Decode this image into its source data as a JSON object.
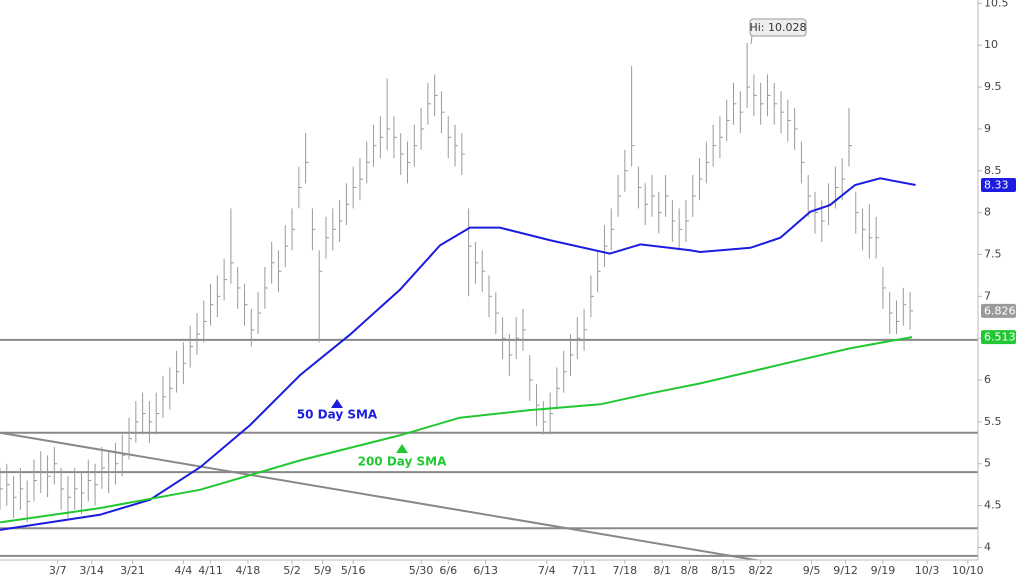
{
  "chart_data": {
    "type": "ohlc",
    "bars": {
      "color": "#9a9a9a",
      "high": [
        4.95,
        5.0,
        4.85,
        4.95,
        4.8,
        5.05,
        5.15,
        5.1,
        5.2,
        4.95,
        4.85,
        4.95,
        4.9,
        5.05,
        5.0,
        5.2,
        5.15,
        5.25,
        5.35,
        5.55,
        5.75,
        5.85,
        5.75,
        5.85,
        6.05,
        6.15,
        6.35,
        6.45,
        6.65,
        6.8,
        6.95,
        7.15,
        7.25,
        7.45,
        8.05,
        7.35,
        7.15,
        6.85,
        7.05,
        7.35,
        7.65,
        7.55,
        7.85,
        8.05,
        8.55,
        8.95,
        8.05,
        7.55,
        7.95,
        8.05,
        8.15,
        8.35,
        8.55,
        8.65,
        8.85,
        9.05,
        9.15,
        9.6,
        9.15,
        8.95,
        8.85,
        9.05,
        9.25,
        9.55,
        9.65,
        9.45,
        9.15,
        9.05,
        8.95,
        8.05,
        7.65,
        7.55,
        7.25,
        7.05,
        6.75,
        6.55,
        6.75,
        6.85,
        6.3,
        5.95,
        5.75,
        5.85,
        6.15,
        6.35,
        6.55,
        6.75,
        6.85,
        7.25,
        7.55,
        7.85,
        8.05,
        8.45,
        8.75,
        9.75,
        8.55,
        8.35,
        8.45,
        8.25,
        8.45,
        8.15,
        8.05,
        8.15,
        8.45,
        8.65,
        8.85,
        9.05,
        9.15,
        9.35,
        9.55,
        9.45,
        10.028,
        9.65,
        9.55,
        9.65,
        9.55,
        9.45,
        9.35,
        9.25,
        8.85,
        8.45,
        8.25,
        8.15,
        8.35,
        8.55,
        8.65,
        9.25,
        8.25,
        8.05,
        8.1,
        7.95,
        7.35,
        7.05,
        6.95,
        7.1,
        7.05
      ],
      "low": [
        4.45,
        4.5,
        4.35,
        4.45,
        4.3,
        4.55,
        4.65,
        4.6,
        4.75,
        4.45,
        4.35,
        4.45,
        4.4,
        4.55,
        4.5,
        4.7,
        4.65,
        4.75,
        4.85,
        5.05,
        5.25,
        5.35,
        5.25,
        5.35,
        5.55,
        5.65,
        5.85,
        5.95,
        6.15,
        6.3,
        6.45,
        6.65,
        6.75,
        6.95,
        7.15,
        6.85,
        6.65,
        6.4,
        6.55,
        6.85,
        7.15,
        7.05,
        7.35,
        7.55,
        8.05,
        8.35,
        7.55,
        6.45,
        7.45,
        7.55,
        7.65,
        7.85,
        8.05,
        8.15,
        8.35,
        8.55,
        8.65,
        8.75,
        8.65,
        8.45,
        8.35,
        8.55,
        8.75,
        9.05,
        9.15,
        8.95,
        8.65,
        8.55,
        8.45,
        7.0,
        7.15,
        7.05,
        6.75,
        6.55,
        6.25,
        6.05,
        6.25,
        6.35,
        5.75,
        5.45,
        5.35,
        5.35,
        5.65,
        5.85,
        6.05,
        6.25,
        6.35,
        6.75,
        7.05,
        7.35,
        7.55,
        7.95,
        8.25,
        8.55,
        8.05,
        7.85,
        7.95,
        7.75,
        7.95,
        7.65,
        7.55,
        7.65,
        7.95,
        8.15,
        8.35,
        8.55,
        8.65,
        8.85,
        9.05,
        8.95,
        9.25,
        9.15,
        9.05,
        9.15,
        9.05,
        8.95,
        8.85,
        8.75,
        8.35,
        7.95,
        7.75,
        7.65,
        7.85,
        8.05,
        8.15,
        8.55,
        7.75,
        7.55,
        7.45,
        7.45,
        6.85,
        6.55,
        6.55,
        6.65,
        6.6
      ],
      "close": [
        4.7,
        4.75,
        4.6,
        4.7,
        4.55,
        4.8,
        4.9,
        4.85,
        5.0,
        4.7,
        4.6,
        4.7,
        4.65,
        4.8,
        4.75,
        4.95,
        4.9,
        5.0,
        5.1,
        5.3,
        5.5,
        5.6,
        5.5,
        5.6,
        5.8,
        5.9,
        6.1,
        6.2,
        6.4,
        6.55,
        6.7,
        6.9,
        7.0,
        7.2,
        7.4,
        7.1,
        6.9,
        6.6,
        6.8,
        7.1,
        7.4,
        7.3,
        7.6,
        7.8,
        8.3,
        8.6,
        7.8,
        7.3,
        7.7,
        7.8,
        7.9,
        8.1,
        8.3,
        8.4,
        8.6,
        8.8,
        8.9,
        9.0,
        8.9,
        8.7,
        8.6,
        8.8,
        9.0,
        9.3,
        9.4,
        9.2,
        8.9,
        8.8,
        8.7,
        7.6,
        7.4,
        7.3,
        7.0,
        6.8,
        6.5,
        6.3,
        6.5,
        6.6,
        6.0,
        5.7,
        5.5,
        5.6,
        5.9,
        6.1,
        6.3,
        6.5,
        6.6,
        7.0,
        7.3,
        7.6,
        7.8,
        8.2,
        8.5,
        8.8,
        8.3,
        8.1,
        8.2,
        8.0,
        8.2,
        7.9,
        7.8,
        7.9,
        8.2,
        8.4,
        8.6,
        8.8,
        8.9,
        9.1,
        9.3,
        9.2,
        9.5,
        9.4,
        9.3,
        9.4,
        9.3,
        9.2,
        9.1,
        9.0,
        8.6,
        8.2,
        8.0,
        7.9,
        8.1,
        8.3,
        8.4,
        8.8,
        8.0,
        7.8,
        7.7,
        7.7,
        7.1,
        6.8,
        6.7,
        6.9,
        6.826
      ]
    },
    "series": [
      {
        "name": "50 Day SMA",
        "color": "#1c1ce0",
        "x": [
          0,
          14.7,
          22.1,
          29.5,
          36.8,
          44.2,
          51.5,
          58.9,
          64.8,
          69.2,
          73.6,
          81,
          89.8,
          94.3,
          101.6,
          103.1,
          110.5,
          114.9,
          119.3,
          122.2,
          125.9,
          129.6,
          134.8
        ],
        "values": [
          4.21,
          4.39,
          4.57,
          4.96,
          5.46,
          6.06,
          6.54,
          7.08,
          7.61,
          7.82,
          7.82,
          7.67,
          7.51,
          7.62,
          7.55,
          7.53,
          7.58,
          7.7,
          8.01,
          8.09,
          8.33,
          8.41,
          8.33
        ]
      },
      {
        "name": "200 Day SMA",
        "color": "#22c833",
        "x": [
          0,
          14.7,
          29.5,
          44.2,
          58.9,
          67.7,
          78,
          88.4,
          95.7,
          103.1,
          110.5,
          117.8,
          125.2,
          134.3
        ],
        "values": [
          4.3,
          4.47,
          4.69,
          5.04,
          5.34,
          5.55,
          5.64,
          5.71,
          5.84,
          5.96,
          6.1,
          6.24,
          6.38,
          6.513
        ]
      }
    ],
    "levels": [
      6.48,
      5.37,
      4.9,
      4.23,
      3.9
    ],
    "level_color": "#888888",
    "trend_line": {
      "x": [
        0,
        112.7
      ],
      "values": [
        5.37,
        3.83
      ]
    },
    "high_label": "Hi: 10.028",
    "price_tags": [
      {
        "value": 8.33,
        "color": "#1c1ce0"
      },
      {
        "value": 6.826,
        "color": "#9a9a9a"
      },
      {
        "value": 6.513,
        "color": "#22c833"
      }
    ],
    "xlim": [
      0,
      144
    ],
    "ylim": [
      3.85,
      10.54
    ],
    "yticks": [
      4,
      4.5,
      5,
      5.5,
      6,
      6.5,
      7,
      7.5,
      8,
      8.5,
      9,
      9.5,
      10,
      10.5
    ],
    "xticks": [
      {
        "value": 8.5,
        "label": "3/7"
      },
      {
        "value": 13.5,
        "label": "3/14"
      },
      {
        "value": 19.5,
        "label": "3/21"
      },
      {
        "value": 27,
        "label": "4/4"
      },
      {
        "value": 31,
        "label": "4/11"
      },
      {
        "value": 36.5,
        "label": "4/18"
      },
      {
        "value": 43,
        "label": "5/2"
      },
      {
        "value": 47.5,
        "label": "5/9"
      },
      {
        "value": 52,
        "label": "5/16"
      },
      {
        "value": 62,
        "label": "5/30"
      },
      {
        "value": 66,
        "label": "6/6"
      },
      {
        "value": 71.5,
        "label": "6/13"
      },
      {
        "value": 80.5,
        "label": "7/4"
      },
      {
        "value": 86,
        "label": "7/11"
      },
      {
        "value": 92,
        "label": "7/18"
      },
      {
        "value": 97.5,
        "label": "8/1"
      },
      {
        "value": 101.5,
        "label": "8/8"
      },
      {
        "value": 106.5,
        "label": "8/15"
      },
      {
        "value": 112,
        "label": "8/22"
      },
      {
        "value": 119.5,
        "label": "9/5"
      },
      {
        "value": 124.5,
        "label": "9/12"
      },
      {
        "value": 130,
        "label": "9/19"
      },
      {
        "value": 136.5,
        "label": "10/3"
      },
      {
        "value": 142.5,
        "label": "10/10"
      }
    ]
  }
}
